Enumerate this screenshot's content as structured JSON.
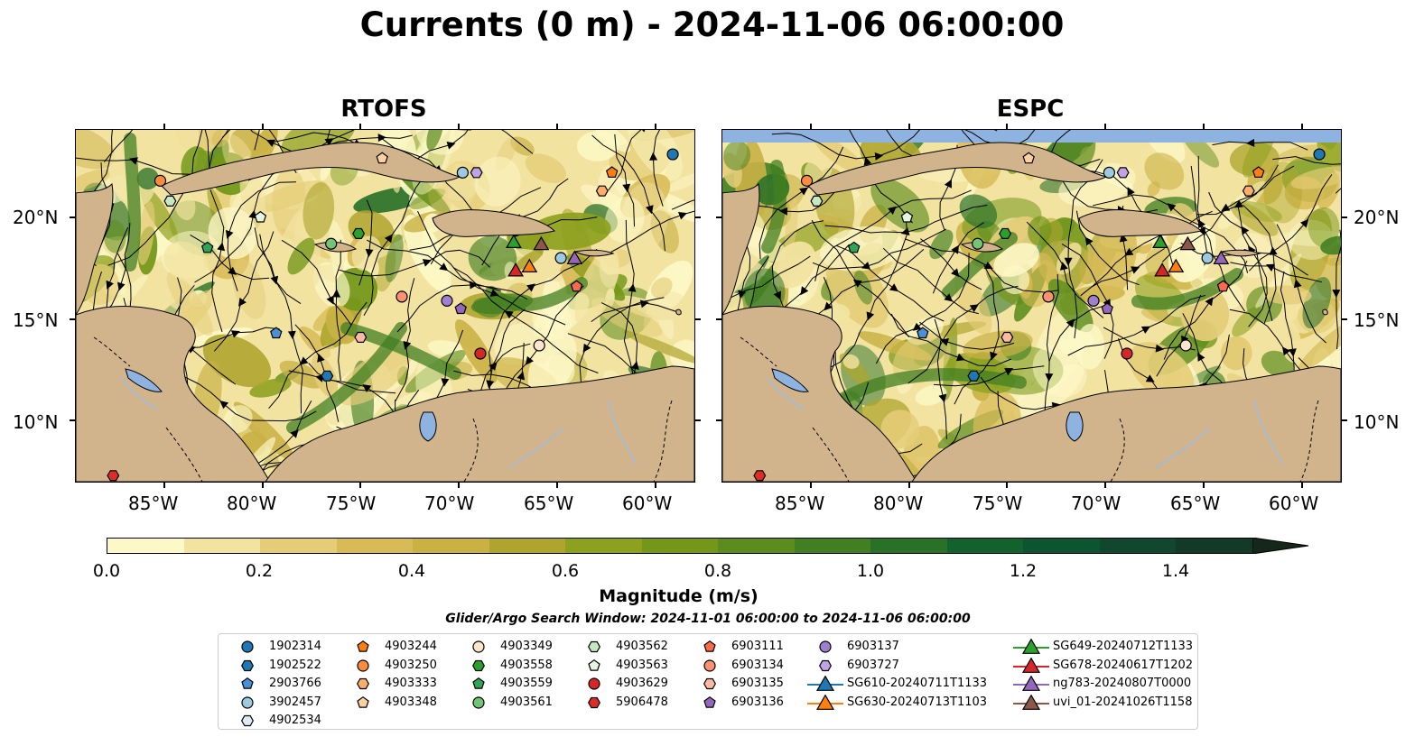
{
  "title": "Currents (0 m) - 2024-11-06 06:00:00",
  "panels": [
    {
      "title": "RTOFS"
    },
    {
      "title": "ESPC"
    }
  ],
  "axes": {
    "lon_ticks": [
      "85°W",
      "80°W",
      "75°W",
      "70°W",
      "65°W",
      "60°W"
    ],
    "lat_ticks": [
      "20°N",
      "15°N",
      "10°N"
    ],
    "lon_range": [
      -89.5,
      -58
    ],
    "lat_range": [
      7,
      24.3
    ]
  },
  "colorbar": {
    "label": "Magnitude (m/s)",
    "ticks": [
      "0.0",
      "0.2",
      "0.4",
      "0.6",
      "0.8",
      "1.0",
      "1.2",
      "1.4"
    ],
    "range": [
      0,
      1.5
    ],
    "extend": "max",
    "colors": [
      "#fdf8c7",
      "#f2e3a1",
      "#e5cd78",
      "#d8bb57",
      "#c9b144",
      "#afa52e",
      "#8ea11f",
      "#74971a",
      "#5c8c1d",
      "#417f22",
      "#2a7128",
      "#11622d",
      "#0b5530",
      "#10472e",
      "#133a28",
      "#142f22",
      "#15261b"
    ]
  },
  "colors": {
    "land": "#d2b48c",
    "water_body": "#8fb3e0",
    "river": "#9dbbe0"
  },
  "search_window": "Glider/Argo Search Window: 2024-11-01 06:00:00 to 2024-11-06 06:00:00",
  "legend": {
    "items": [
      {
        "label": "1902314",
        "marker": "circle",
        "color": "#1f77b4"
      },
      {
        "label": "1902522",
        "marker": "hexagon",
        "color": "#1f77b4"
      },
      {
        "label": "2903766",
        "marker": "pentagon",
        "color": "#4a90d9"
      },
      {
        "label": "3902457",
        "marker": "circle",
        "color": "#9ecae1"
      },
      {
        "label": "4902534",
        "marker": "hexagon",
        "color": "#deebf7"
      },
      {
        "label": "4903244",
        "marker": "pentagon",
        "color": "#ff7f0e"
      },
      {
        "label": "4903250",
        "marker": "circle",
        "color": "#fd8d3c"
      },
      {
        "label": "4903333",
        "marker": "hexagon",
        "color": "#fdae6b"
      },
      {
        "label": "4903348",
        "marker": "pentagon",
        "color": "#fdd0a2"
      },
      {
        "label": "4903349",
        "marker": "circle",
        "color": "#fee6ce"
      },
      {
        "label": "4903558",
        "marker": "hexagon",
        "color": "#2ca02c"
      },
      {
        "label": "4903559",
        "marker": "pentagon",
        "color": "#31a354"
      },
      {
        "label": "4903561",
        "marker": "circle",
        "color": "#74c476"
      },
      {
        "label": "4903562",
        "marker": "hexagon",
        "color": "#c7e9c0"
      },
      {
        "label": "4903563",
        "marker": "pentagon",
        "color": "#e5f5e0"
      },
      {
        "label": "4903629",
        "marker": "circle",
        "color": "#d62728"
      },
      {
        "label": "5906478",
        "marker": "hexagon",
        "color": "#de2d26"
      },
      {
        "label": "6903111",
        "marker": "pentagon",
        "color": "#fb6a4a"
      },
      {
        "label": "6903134",
        "marker": "circle",
        "color": "#fc9272"
      },
      {
        "label": "6903135",
        "marker": "hexagon",
        "color": "#fcbba1"
      },
      {
        "label": "6903136",
        "marker": "pentagon",
        "color": "#9467bd"
      },
      {
        "label": "6903137",
        "marker": "circle",
        "color": "#9e7fd0"
      },
      {
        "label": "6903727",
        "marker": "hexagon",
        "color": "#bfa3e6"
      },
      {
        "label": "SG610-20240711T1133",
        "marker": "triangle",
        "color": "#1f77b4"
      },
      {
        "label": "SG630-20240713T1103",
        "marker": "triangle",
        "color": "#ff7f0e"
      },
      {
        "label": "SG649-20240712T1133",
        "marker": "triangle",
        "color": "#2ca02c"
      },
      {
        "label": "SG678-20240617T1202",
        "marker": "triangle",
        "color": "#d62728"
      },
      {
        "label": "ng783-20240807T0000",
        "marker": "triangle",
        "color": "#9467bd"
      },
      {
        "label": "uvi_01-20241026T1158",
        "marker": "triangle",
        "color": "#8c564b"
      }
    ]
  },
  "platform_positions": {
    "rtofs": [
      {
        "id": "1902314",
        "lon": -59.1,
        "lat": 23.1
      },
      {
        "id": "4903250",
        "lon": -85.2,
        "lat": 21.8
      },
      {
        "id": "4903562",
        "lon": -84.7,
        "lat": 20.8
      },
      {
        "id": "4903563",
        "lon": -80.1,
        "lat": 20.0
      },
      {
        "id": "4903559",
        "lon": -82.8,
        "lat": 18.5
      },
      {
        "id": "4903561",
        "lon": -76.5,
        "lat": 18.7
      },
      {
        "id": "4903558",
        "lon": -75.1,
        "lat": 19.2
      },
      {
        "id": "4903348",
        "lon": -73.9,
        "lat": 22.9
      },
      {
        "id": "3902457",
        "lon": -69.8,
        "lat": 22.2
      },
      {
        "id": "6903727",
        "lon": -69.1,
        "lat": 22.2
      },
      {
        "id": "4903244",
        "lon": -62.2,
        "lat": 22.2
      },
      {
        "id": "4903333",
        "lon": -62.7,
        "lat": 21.3
      },
      {
        "id": "SG649-20240712T1133",
        "lon": -67.2,
        "lat": 18.8
      },
      {
        "id": "uvi_01-20241026T1158",
        "lon": -65.8,
        "lat": 18.7
      },
      {
        "id": "SG678-20240617T1202",
        "lon": -67.1,
        "lat": 17.4
      },
      {
        "id": "SG630-20240713T1103",
        "lon": -66.4,
        "lat": 17.6
      },
      {
        "id": "3902457",
        "lon": -64.8,
        "lat": 18.0
      },
      {
        "id": "ng783-20240807T0000",
        "lon": -64.1,
        "lat": 18.0
      },
      {
        "id": "6903111",
        "lon": -64.0,
        "lat": 16.6
      },
      {
        "id": "6903134",
        "lon": -72.9,
        "lat": 16.1
      },
      {
        "id": "6903137",
        "lon": -70.6,
        "lat": 15.9
      },
      {
        "id": "6903136",
        "lon": -69.9,
        "lat": 15.5
      },
      {
        "id": "2903766",
        "lon": -79.3,
        "lat": 14.3
      },
      {
        "id": "6903135",
        "lon": -75.0,
        "lat": 14.1
      },
      {
        "id": "4903349",
        "lon": -65.9,
        "lat": 13.7
      },
      {
        "id": "4903629",
        "lon": -68.9,
        "lat": 13.3
      },
      {
        "id": "1902522",
        "lon": -76.7,
        "lat": 12.2
      },
      {
        "id": "5906478",
        "lon": -87.6,
        "lat": 7.3
      }
    ]
  }
}
